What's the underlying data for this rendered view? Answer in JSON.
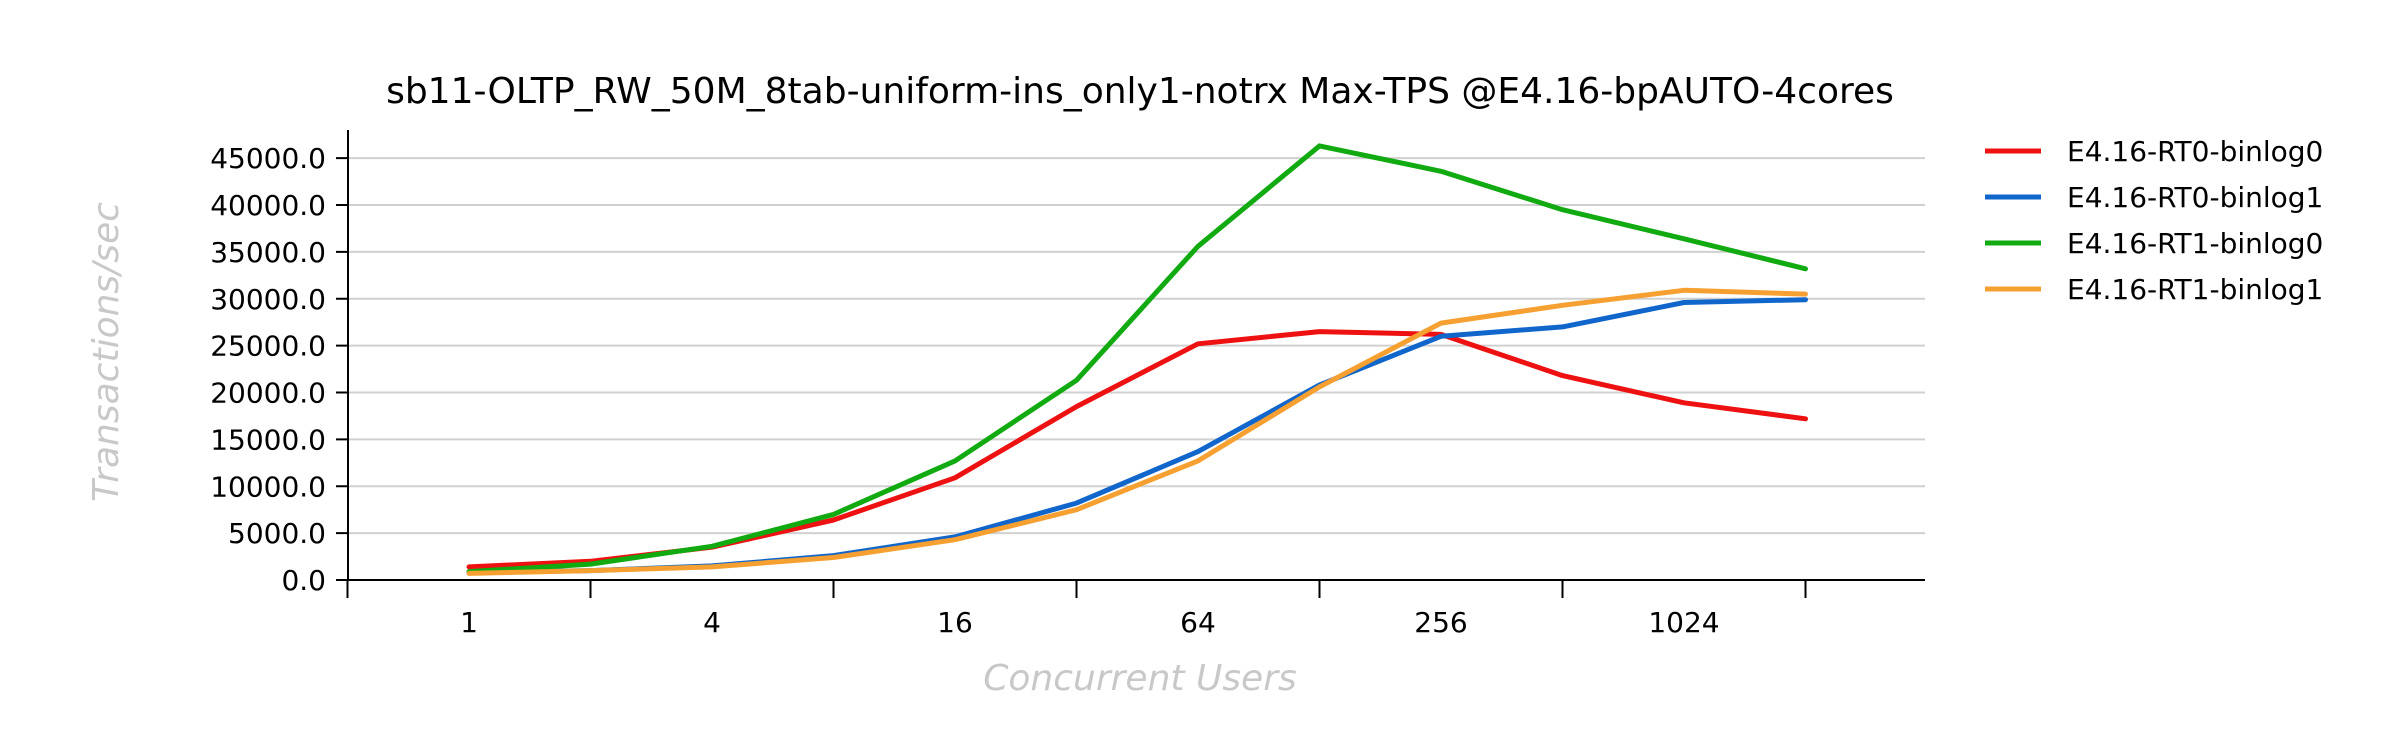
{
  "chart_data": {
    "type": "line",
    "title": "sb11-OLTP_RW_50M_8tab-uniform-ins_only1-notrx Max-TPS @E4.16-bpAUTO-4cores",
    "xlabel": "Concurrent Users",
    "ylabel": "Transactions/sec",
    "x_scale": "log2",
    "x": [
      1,
      2,
      4,
      8,
      16,
      32,
      64,
      128,
      256,
      512,
      1024,
      2048
    ],
    "x_tick_labels": [
      "1",
      "4",
      "16",
      "64",
      "256",
      "1024"
    ],
    "x_tick_values": [
      1,
      4,
      16,
      64,
      256,
      1024
    ],
    "ylim": [
      0,
      48000
    ],
    "y_ticks": [
      0,
      5000,
      10000,
      15000,
      20000,
      25000,
      30000,
      35000,
      40000,
      45000
    ],
    "y_tick_labels": [
      "0.0",
      "5000.0",
      "10000.0",
      "15000.0",
      "20000.0",
      "25000.0",
      "30000.0",
      "35000.0",
      "40000.0",
      "45000.0"
    ],
    "grid": true,
    "legend_position": "right",
    "series": [
      {
        "name": "E4.16-RT0-binlog0",
        "color": "#ee1111",
        "values": [
          1400,
          2000,
          3500,
          6400,
          10900,
          18500,
          25200,
          26500,
          26200,
          21800,
          18900,
          17200
        ]
      },
      {
        "name": "E4.16-RT0-binlog1",
        "color": "#1166cc",
        "values": [
          800,
          1000,
          1500,
          2600,
          4600,
          8200,
          13700,
          20800,
          26000,
          27000,
          29600,
          29900
        ]
      },
      {
        "name": "E4.16-RT1-binlog0",
        "color": "#11aa11",
        "values": [
          900,
          1700,
          3600,
          7000,
          12700,
          21300,
          35600,
          46300,
          43600,
          39500,
          36400,
          33200
        ]
      },
      {
        "name": "E4.16-RT1-binlog1",
        "color": "#f5a030",
        "values": [
          700,
          1000,
          1400,
          2400,
          4300,
          7500,
          12700,
          20600,
          27400,
          29300,
          30900,
          30500
        ]
      }
    ]
  }
}
